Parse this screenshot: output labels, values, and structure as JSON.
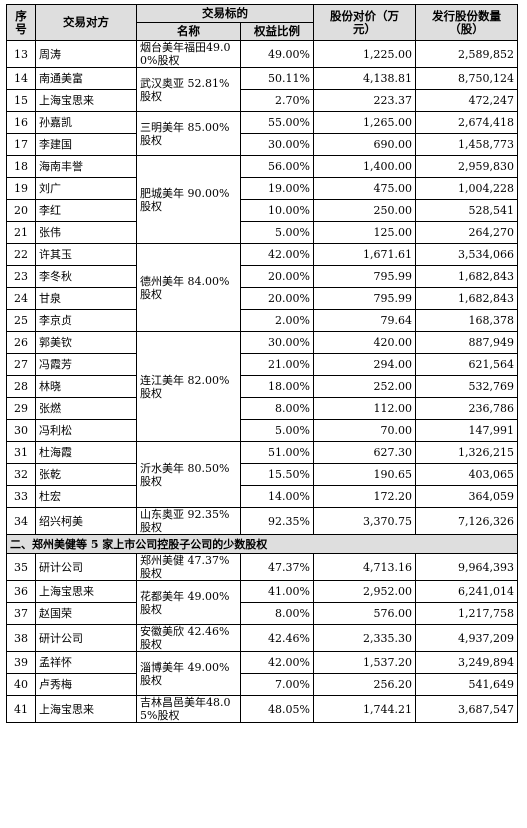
{
  "header": {
    "col_index": "序号",
    "col_party": "交易对方",
    "col_target_group": "交易标的",
    "col_name": "名称",
    "col_ratio": "权益比例",
    "col_price": "股份对价（万元）",
    "col_shares": "发行股份数量（股）"
  },
  "rows": [
    {
      "no": "13",
      "party": "周涛",
      "ratio": "49.00%",
      "price": "1,225.00",
      "shares": "2,589,852"
    },
    {
      "no": "14",
      "party": "南通美富",
      "ratio": "50.11%",
      "price": "4,138.81",
      "shares": "8,750,124"
    },
    {
      "no": "15",
      "party": "上海宝思来",
      "ratio": "2.70%",
      "price": "223.37",
      "shares": "472,247"
    },
    {
      "no": "16",
      "party": "孙嘉凯",
      "ratio": "55.00%",
      "price": "1,265.00",
      "shares": "2,674,418"
    },
    {
      "no": "17",
      "party": "李建国",
      "ratio": "30.00%",
      "price": "690.00",
      "shares": "1,458,773"
    },
    {
      "no": "18",
      "party": "海南丰誉",
      "ratio": "56.00%",
      "price": "1,400.00",
      "shares": "2,959,830"
    },
    {
      "no": "19",
      "party": "刘广",
      "ratio": "19.00%",
      "price": "475.00",
      "shares": "1,004,228"
    },
    {
      "no": "20",
      "party": "李红",
      "ratio": "10.00%",
      "price": "250.00",
      "shares": "528,541"
    },
    {
      "no": "21",
      "party": "张伟",
      "ratio": "5.00%",
      "price": "125.00",
      "shares": "264,270"
    },
    {
      "no": "22",
      "party": "许其玉",
      "ratio": "42.00%",
      "price": "1,671.61",
      "shares": "3,534,066"
    },
    {
      "no": "23",
      "party": "李冬秋",
      "ratio": "20.00%",
      "price": "795.99",
      "shares": "1,682,843"
    },
    {
      "no": "24",
      "party": "甘泉",
      "ratio": "20.00%",
      "price": "795.99",
      "shares": "1,682,843"
    },
    {
      "no": "25",
      "party": "李京贞",
      "ratio": "2.00%",
      "price": "79.64",
      "shares": "168,378"
    },
    {
      "no": "26",
      "party": "郭美钦",
      "ratio": "30.00%",
      "price": "420.00",
      "shares": "887,949"
    },
    {
      "no": "27",
      "party": "冯霞芳",
      "ratio": "21.00%",
      "price": "294.00",
      "shares": "621,564"
    },
    {
      "no": "28",
      "party": "林晓",
      "ratio": "18.00%",
      "price": "252.00",
      "shares": "532,769"
    },
    {
      "no": "29",
      "party": "张燃",
      "ratio": "8.00%",
      "price": "112.00",
      "shares": "236,786"
    },
    {
      "no": "30",
      "party": "冯利松",
      "ratio": "5.00%",
      "price": "70.00",
      "shares": "147,991"
    },
    {
      "no": "31",
      "party": "杜海霞",
      "ratio": "51.00%",
      "price": "627.30",
      "shares": "1,326,215"
    },
    {
      "no": "32",
      "party": "张乾",
      "ratio": "15.50%",
      "price": "190.65",
      "shares": "403,065"
    },
    {
      "no": "33",
      "party": "杜宏",
      "ratio": "14.00%",
      "price": "172.20",
      "shares": "364,059"
    },
    {
      "no": "34",
      "party": "绍兴柯美",
      "ratio": "92.35%",
      "price": "3,370.75",
      "shares": "7,126,326"
    },
    {
      "no": "35",
      "party": "研计公司",
      "ratio": "47.37%",
      "price": "4,713.16",
      "shares": "9,964,393"
    },
    {
      "no": "36",
      "party": "上海宝思来",
      "ratio": "41.00%",
      "price": "2,952.00",
      "shares": "6,241,014"
    },
    {
      "no": "37",
      "party": "赵国荣",
      "ratio": "8.00%",
      "price": "576.00",
      "shares": "1,217,758"
    },
    {
      "no": "38",
      "party": "研计公司",
      "ratio": "42.46%",
      "price": "2,335.30",
      "shares": "4,937,209"
    },
    {
      "no": "39",
      "party": "孟祥怀",
      "ratio": "42.00%",
      "price": "1,537.20",
      "shares": "3,249,894"
    },
    {
      "no": "40",
      "party": "卢秀梅",
      "ratio": "7.00%",
      "price": "256.20",
      "shares": "541,649"
    },
    {
      "no": "41",
      "party": "上海宝思来",
      "ratio": "48.05%",
      "price": "1,744.21",
      "shares": "3,687,547"
    }
  ],
  "targets": [
    "烟台美年福田49.00%股权",
    "武汉奥亚 52.81%股权",
    "三明美年 85.00%股权",
    "肥城美年 90.00%股权",
    "德州美年 84.00%股权",
    "连江美年 82.00%股权",
    "沂水美年 80.50%股权",
    "山东奥亚 92.35%股权",
    "郑州美健 47.37%股权",
    "花都美年 49.00%股权",
    "安徽美欣 42.46%股权",
    "淄博美年 49.00%股权",
    "吉林昌邑美年48.05%股权"
  ],
  "section2": "二、郑州美健等 5 家上市公司控股子公司的少数股权"
}
